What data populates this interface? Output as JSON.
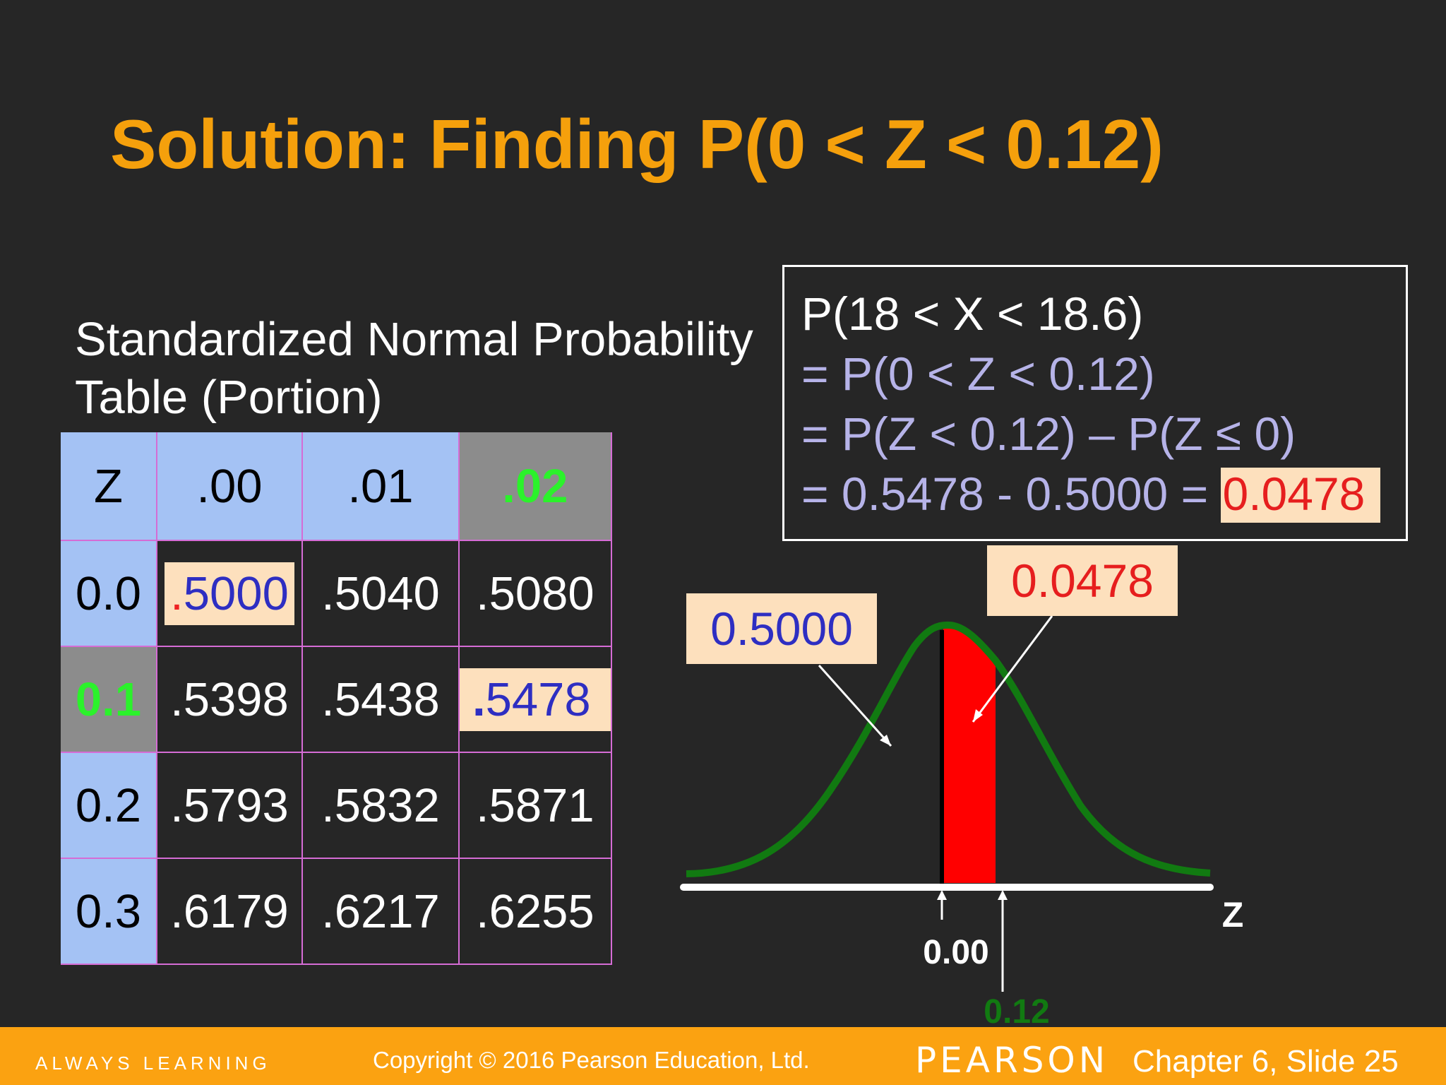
{
  "title": "Solution: Finding P(0 < Z < 0.12)",
  "table_caption": [
    "Standardized Normal Probability",
    "Table (Portion)"
  ],
  "table": {
    "headers": [
      "Z",
      ".00",
      ".01",
      ".02"
    ],
    "rows": [
      {
        "z": "0.0",
        "cells": [
          ".5000",
          ".5040",
          ".5080"
        ]
      },
      {
        "z": "0.1",
        "cells": [
          ".5398",
          ".5438",
          ".5478"
        ]
      },
      {
        "z": "0.2",
        "cells": [
          ".5793",
          ".5832",
          ".5871"
        ]
      },
      {
        "z": "0.3",
        "cells": [
          ".6179",
          ".6217",
          ".6255"
        ]
      }
    ]
  },
  "solution": {
    "line1": "P(18 < X < 18.6)",
    "line2": "= P(0 < Z < 0.12)",
    "line3": "= P(Z < 0.12) – P(Z ≤ 0)",
    "line4_prefix": "= 0.5478 - 0.5000 = ",
    "line4_answer": "0.0478"
  },
  "graph": {
    "callout_left": "0.5000",
    "callout_right": "0.0478",
    "tick_zero": "0.00",
    "tick_012": "0.12",
    "axis_label": "Z"
  },
  "colors": {
    "title": "#f5a00c",
    "table_header": "#a4c2f4",
    "highlight": "#8c8c8c",
    "green_highlight": "#2bf22b",
    "peach": "#fde0bd",
    "curve": "#117a11",
    "shaded_area": "#ff0000",
    "footer": "#fba211"
  },
  "footer": {
    "tagline": "ALWAYS LEARNING",
    "copyright": "Copyright © 2016 Pearson Education, Ltd.",
    "brand": "PEARSON",
    "slide_label": "Chapter 6, Slide 25"
  }
}
